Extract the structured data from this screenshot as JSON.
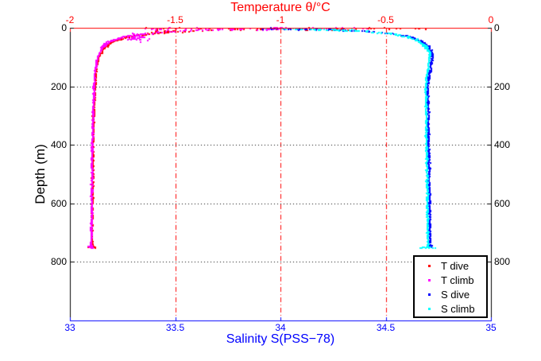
{
  "title": {
    "text": "Temperature θ/°C",
    "color": "#ff0000"
  },
  "axes": {
    "top": {
      "label": "Temperature θ/°C",
      "color": "#ff0000",
      "range": [
        -2,
        0
      ],
      "tick_values": [
        -2,
        -1.5,
        -1,
        -0.5,
        0
      ],
      "tick_labels": [
        "-2",
        "-1.5",
        "-1",
        "-0.5",
        "0"
      ]
    },
    "bottom": {
      "label": "Salinity S(PSS−78)",
      "color": "#0000ff",
      "range": [
        33,
        35
      ],
      "tick_values": [
        33,
        33.5,
        34,
        34.5,
        35
      ],
      "tick_labels": [
        "33",
        "33.5",
        "34",
        "34.5",
        "35"
      ]
    },
    "left": {
      "label": "Depth (m)",
      "color": "#000000",
      "range": [
        0,
        1000
      ],
      "tick_values": [
        0,
        200,
        400,
        600,
        800
      ],
      "tick_labels": [
        "0",
        "200",
        "400",
        "600",
        "800"
      ]
    },
    "right": {
      "color": "#000000",
      "tick_values": [
        0,
        200,
        400,
        600,
        800
      ],
      "tick_labels": [
        "0",
        "200",
        "400",
        "600",
        "800"
      ]
    }
  },
  "grid": {
    "vertical": {
      "tick_values": [
        -1.5,
        -1,
        -0.5
      ],
      "color": "#ff0000",
      "style": "dash-dot"
    },
    "horizontal": {
      "tick_values": [
        200,
        400,
        600,
        800
      ],
      "color": "#000000",
      "style": "dotted"
    }
  },
  "legend": {
    "border_color": "#000000",
    "position": "bottom-right"
  },
  "chart_data": {
    "type": "scatter",
    "title": "Temperature θ/°C",
    "top_xlabel": "Temperature θ/°C",
    "bottom_xlabel": "Salinity S(PSS−78)",
    "ylabel": "Depth (m)",
    "top_xlim": [
      -2,
      0
    ],
    "bottom_xlim": [
      33,
      35
    ],
    "ylim": [
      0,
      1000
    ],
    "y_axis_reversed_downward": true,
    "grid": true,
    "series": [
      {
        "name": "T dive",
        "axis": "top",
        "color": "#ff0000",
        "marker": "point",
        "profile_depth_value": [
          [
            3,
            -1.15
          ],
          [
            6,
            -1.28
          ],
          [
            10,
            -1.4
          ],
          [
            15,
            -1.52
          ],
          [
            22,
            -1.63
          ],
          [
            30,
            -1.72
          ],
          [
            45,
            -1.79
          ],
          [
            65,
            -1.835
          ],
          [
            100,
            -1.862
          ],
          [
            150,
            -1.876
          ],
          [
            250,
            -1.885
          ],
          [
            400,
            -1.89
          ],
          [
            600,
            -1.893
          ],
          [
            750,
            -1.895
          ]
        ],
        "jitter": {
          "shallow": 0.016,
          "mid": 0.008,
          "deep": 0.0045
        },
        "surface_scatter": {
          "value_min": -1.64,
          "value_max": -0.42,
          "depth_min": 0,
          "depth_max": 8,
          "depth_trend": 0,
          "count": 55
        },
        "clusters": [
          {
            "value": -0.34,
            "depth": 3,
            "value_spread": 0.05,
            "depth_spread": 2,
            "count": 6
          },
          {
            "value": -1.55,
            "depth": 12,
            "value_spread": 0.05,
            "depth_spread": 5,
            "count": 16
          },
          {
            "value": -1.895,
            "depth": 750,
            "value_spread": 0.02,
            "depth_spread": 3,
            "count": 12
          }
        ]
      },
      {
        "name": "T climb",
        "axis": "top",
        "color": "#ff00ff",
        "marker": "point",
        "profile_depth_value": [
          [
            3,
            -1.18
          ],
          [
            6,
            -1.31
          ],
          [
            10,
            -1.43
          ],
          [
            15,
            -1.55
          ],
          [
            22,
            -1.66
          ],
          [
            30,
            -1.74
          ],
          [
            45,
            -1.805
          ],
          [
            65,
            -1.845
          ],
          [
            100,
            -1.868
          ],
          [
            150,
            -1.88
          ],
          [
            250,
            -1.888
          ],
          [
            400,
            -1.893
          ],
          [
            600,
            -1.896
          ],
          [
            754,
            -1.898
          ]
        ],
        "jitter": {
          "shallow": 0.016,
          "mid": 0.008,
          "deep": 0.0045
        },
        "surface_scatter": {
          "value_min": -1.68,
          "value_max": -0.5,
          "depth_min": 0,
          "depth_max": 8,
          "depth_trend": 0,
          "count": 50
        },
        "clusters": [
          {
            "value": -1.68,
            "depth": 34,
            "value_spread": 0.05,
            "depth_spread": 14,
            "count": 40
          },
          {
            "value": -1.02,
            "depth": 2.5,
            "value_spread": 0.045,
            "depth_spread": 2,
            "count": 30
          },
          {
            "value": -1.898,
            "depth": 748,
            "value_spread": 0.012,
            "depth_spread": 6,
            "count": 20
          }
        ]
      },
      {
        "name": "S dive",
        "axis": "bottom",
        "color": "#0000ff",
        "marker": "point",
        "profile_depth_value": [
          [
            2,
            34.05
          ],
          [
            5,
            34.22
          ],
          [
            9,
            34.34
          ],
          [
            14,
            34.45
          ],
          [
            20,
            34.53
          ],
          [
            30,
            34.61
          ],
          [
            45,
            34.665
          ],
          [
            65,
            34.705
          ],
          [
            90,
            34.725
          ],
          [
            130,
            34.715
          ],
          [
            200,
            34.7
          ],
          [
            350,
            34.703
          ],
          [
            550,
            34.708
          ],
          [
            748,
            34.71
          ]
        ],
        "jitter": {
          "shallow": 0.02,
          "mid": 0.01,
          "deep": 0.005
        },
        "surface_scatter": {
          "value_min": 33.9,
          "value_max": 34.42,
          "depth_min": 0,
          "depth_max": 4,
          "depth_trend": 9,
          "count": 40
        },
        "clusters": [
          {
            "value": 34.71,
            "depth": 748,
            "value_spread": 0.02,
            "depth_spread": 4,
            "count": 10
          }
        ]
      },
      {
        "name": "S climb",
        "axis": "bottom",
        "color": "#00ffff",
        "marker": "point",
        "profile_depth_value": [
          [
            2,
            34.02
          ],
          [
            5,
            34.19
          ],
          [
            9,
            34.32
          ],
          [
            14,
            34.43
          ],
          [
            20,
            34.515
          ],
          [
            30,
            34.6
          ],
          [
            45,
            34.655
          ],
          [
            65,
            34.695
          ],
          [
            90,
            34.712
          ],
          [
            130,
            34.703
          ],
          [
            200,
            34.69
          ],
          [
            350,
            34.693
          ],
          [
            550,
            34.698
          ],
          [
            752,
            34.7
          ]
        ],
        "jitter": {
          "shallow": 0.02,
          "mid": 0.01,
          "deep": 0.005
        },
        "surface_scatter": {
          "value_min": 33.93,
          "value_max": 34.45,
          "depth_min": 0,
          "depth_max": 4,
          "depth_trend": 9,
          "count": 40
        },
        "clusters": [
          {
            "value": 34.7,
            "depth": 752,
            "value_spread": 0.035,
            "depth_spread": 3,
            "count": 18
          }
        ]
      }
    ]
  }
}
